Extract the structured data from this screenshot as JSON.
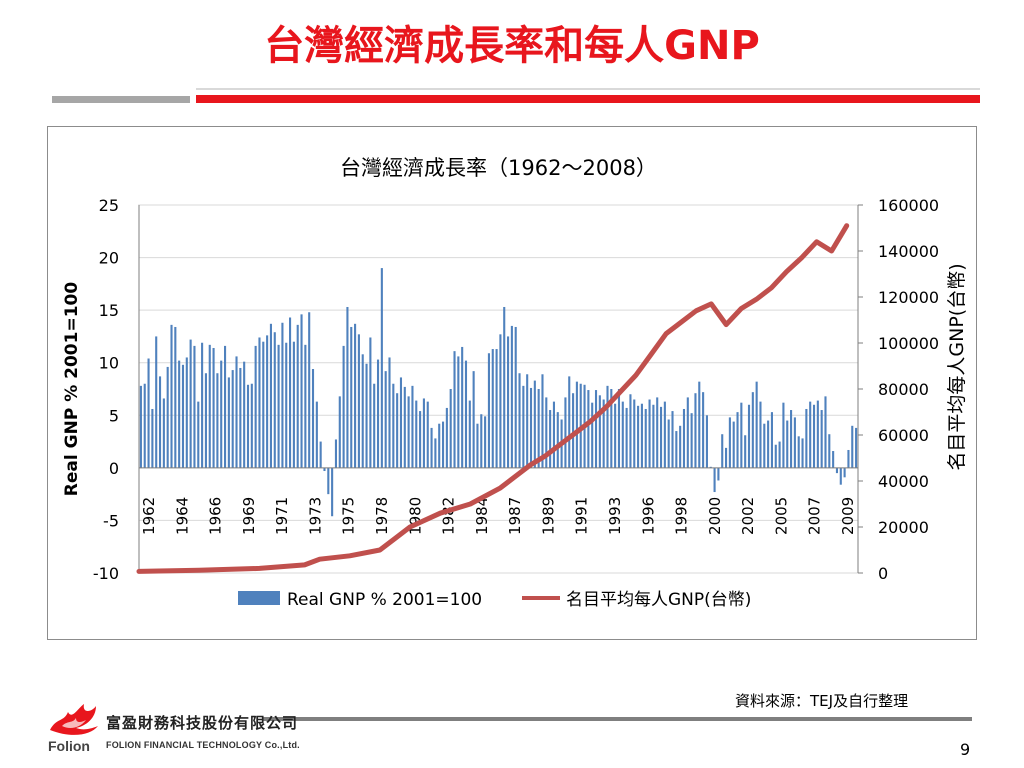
{
  "slide": {
    "title": "台灣經濟成長率和每人GNP",
    "source_note": "資料來源：TEJ及自行整理",
    "page_number": "9",
    "company_cn": "富盈財務科技股份有限公司",
    "company_en": "FOLION FINANCIAL TECHNOLOGY Co.,Ltd.",
    "logo_text": "Folion",
    "accent_color": "#e8161d"
  },
  "chart_data": {
    "type": "bar-line-dual-axis",
    "title": "台灣經濟成長率（1962～2008）",
    "ylabel_left": "Real GNP % 2001=100",
    "ylabel_right": "名目平均每人GNP(台幣)",
    "ylim_left": [
      -10,
      25
    ],
    "yticks_left": [
      "25",
      "20",
      "15",
      "10",
      "5",
      "0",
      "-5",
      "-10"
    ],
    "ylim_right": [
      0,
      160000
    ],
    "yticks_right": [
      "160000",
      "140000",
      "120000",
      "100000",
      "80000",
      "60000",
      "40000",
      "20000",
      "0"
    ],
    "xtick_labels": [
      "1962",
      "1964",
      "1966",
      "1969",
      "1971",
      "1973",
      "1975",
      "1978",
      "1980",
      "1982",
      "1984",
      "1987",
      "1989",
      "1991",
      "1993",
      "1996",
      "1998",
      "2000",
      "2002",
      "2005",
      "2007",
      "2009"
    ],
    "grid": true,
    "legend_position": "bottom",
    "series": [
      {
        "name": "Real GNP % 2001=100",
        "kind": "bar",
        "color": "#4f81bd",
        "values": [
          7.8,
          8.0,
          10.4,
          5.6,
          12.5,
          8.7,
          6.6,
          9.6,
          13.6,
          13.4,
          10.2,
          9.8,
          10.5,
          12.2,
          11.6,
          6.3,
          11.9,
          9.0,
          11.7,
          11.4,
          9.0,
          10.2,
          11.6,
          8.6,
          9.3,
          10.6,
          9.5,
          10.1,
          7.9,
          8.0,
          11.6,
          12.4,
          12.0,
          12.6,
          13.7,
          12.9,
          11.7,
          13.8,
          11.9,
          14.3,
          12.0,
          13.6,
          14.6,
          11.7,
          14.8,
          9.4,
          6.3,
          2.5,
          -0.3,
          -2.5,
          -4.6,
          2.7,
          6.8,
          11.6,
          15.3,
          13.4,
          13.7,
          12.7,
          10.8,
          9.9,
          12.4,
          8.0,
          10.3,
          19.0,
          9.2,
          10.5,
          8.0,
          7.1,
          8.6,
          7.7,
          6.8,
          7.8,
          6.4,
          5.4,
          6.6,
          6.3,
          3.8,
          2.8,
          4.2,
          4.4,
          5.7,
          7.5,
          11.1,
          10.6,
          11.5,
          10.2,
          6.4,
          9.2,
          4.2,
          5.1,
          4.9,
          10.9,
          11.3,
          11.3,
          12.7,
          15.3,
          12.5,
          13.5,
          13.4,
          9.0,
          7.8,
          8.9,
          7.6,
          8.3,
          7.5,
          8.9,
          6.7,
          5.5,
          6.3,
          5.3,
          4.6,
          6.7,
          8.7,
          7.1,
          8.2,
          8.0,
          7.9,
          7.4,
          6.2,
          7.4,
          6.9,
          6.5,
          7.8,
          7.5,
          6.1,
          7.5,
          6.3,
          5.7,
          7.0,
          6.5,
          5.9,
          6.1,
          5.6,
          6.5,
          6.0,
          6.7,
          5.8,
          6.3,
          4.6,
          5.4,
          3.5,
          4.0,
          5.6,
          6.7,
          5.2,
          7.1,
          8.2,
          7.2,
          5.0,
          0.1,
          -2.3,
          -1.2,
          3.2,
          1.9,
          4.8,
          4.4,
          5.3,
          6.2,
          3.1,
          6.0,
          7.2,
          8.2,
          6.3,
          4.2,
          4.5,
          5.3,
          2.2,
          2.5,
          6.2,
          4.5,
          5.5,
          4.8,
          3.0,
          2.8,
          5.6,
          6.3,
          6.0,
          6.4,
          5.5,
          6.8,
          3.2,
          1.6,
          -0.5,
          -1.6,
          -0.9,
          1.7,
          4.0,
          3.8
        ],
        "x_range": [
          1962,
          2009.75
        ]
      },
      {
        "name": "名目平均每人GNP(台幣)",
        "kind": "line",
        "color": "#c0504d",
        "points": [
          [
            1962,
            700
          ],
          [
            1966,
            1200
          ],
          [
            1970,
            2000
          ],
          [
            1973,
            3500
          ],
          [
            1974,
            6000
          ],
          [
            1976,
            7500
          ],
          [
            1978,
            10000
          ],
          [
            1979,
            15000
          ],
          [
            1980,
            20000
          ],
          [
            1982,
            26000
          ],
          [
            1984,
            30000
          ],
          [
            1986,
            37000
          ],
          [
            1987,
            42000
          ],
          [
            1988,
            47000
          ],
          [
            1989,
            51000
          ],
          [
            1990,
            56000
          ],
          [
            1991,
            61000
          ],
          [
            1992,
            66000
          ],
          [
            1993,
            72000
          ],
          [
            1994,
            79000
          ],
          [
            1995,
            86000
          ],
          [
            1996,
            95000
          ],
          [
            1997,
            104000
          ],
          [
            1998,
            109000
          ],
          [
            1999,
            114000
          ],
          [
            2000,
            117000
          ],
          [
            2001,
            108000
          ],
          [
            2002,
            115000
          ],
          [
            2003,
            119000
          ],
          [
            2004,
            124000
          ],
          [
            2005,
            131000
          ],
          [
            2006,
            137000
          ],
          [
            2007,
            144000
          ],
          [
            2008,
            140000
          ],
          [
            2009,
            151000
          ]
        ]
      }
    ]
  }
}
